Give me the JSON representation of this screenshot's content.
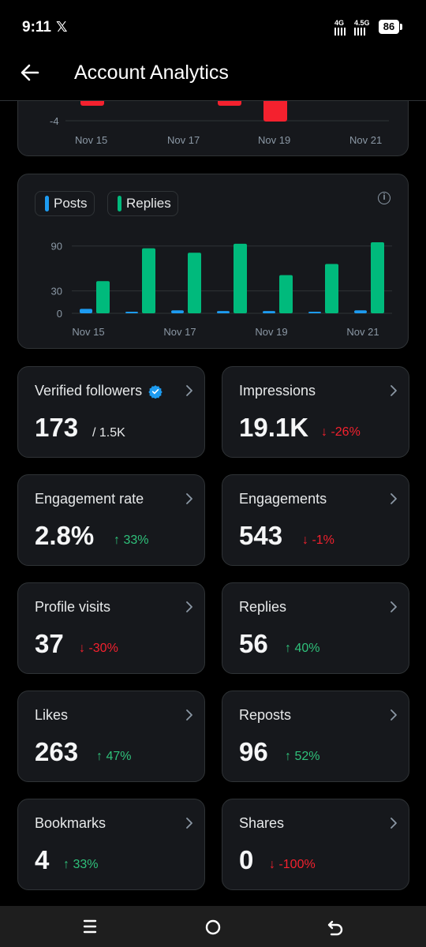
{
  "status": {
    "time": "9:11",
    "x_logo": "𝕏",
    "net1": "4G",
    "net2": "4.5G",
    "battery": "86"
  },
  "header": {
    "title": "Account Analytics",
    "back_icon": "arrow-left-icon"
  },
  "chart_top": {
    "y_tick": "-4",
    "x_ticks": [
      "Nov 15",
      "Nov 17",
      "Nov 19",
      "Nov 21"
    ]
  },
  "chart_data": {
    "type": "bar",
    "categories": [
      "Nov 15",
      "Nov 16",
      "Nov 17",
      "Nov 18",
      "Nov 19",
      "Nov 20",
      "Nov 21"
    ],
    "series": [
      {
        "name": "Posts",
        "color": "#1d9bf0",
        "values": [
          6,
          2,
          4,
          3,
          3,
          1,
          4
        ]
      },
      {
        "name": "Replies",
        "color": "#00ba7c",
        "values": [
          43,
          87,
          81,
          93,
          51,
          66,
          95
        ]
      }
    ],
    "y_ticks": [
      "90",
      "30",
      "0"
    ],
    "x_ticks": [
      "Nov 15",
      "Nov 17",
      "Nov 19",
      "Nov 21"
    ],
    "ylim": [
      0,
      100
    ],
    "grid": true,
    "legend": "top-left"
  },
  "metrics": [
    {
      "label": "Verified followers",
      "value": "173",
      "sub": "/ 1.5K",
      "delta": "",
      "verified": true
    },
    {
      "label": "Impressions",
      "value": "19.1K",
      "delta": "-26%",
      "dir": "down"
    },
    {
      "label": "Engagement rate",
      "value": "2.8%",
      "delta": "33%",
      "dir": "up"
    },
    {
      "label": "Engagements",
      "value": "543",
      "delta": "-1%",
      "dir": "down"
    },
    {
      "label": "Profile visits",
      "value": "37",
      "delta": "-30%",
      "dir": "down"
    },
    {
      "label": "Replies",
      "value": "56",
      "delta": "40%",
      "dir": "up"
    },
    {
      "label": "Likes",
      "value": "263",
      "delta": "47%",
      "dir": "up"
    },
    {
      "label": "Reposts",
      "value": "96",
      "delta": "52%",
      "dir": "up"
    },
    {
      "label": "Bookmarks",
      "value": "4",
      "delta": "33%",
      "dir": "up"
    },
    {
      "label": "Shares",
      "value": "0",
      "delta": "-100%",
      "dir": "down"
    }
  ],
  "colors": {
    "up": "#2fc07a",
    "down": "#f4212e",
    "negative_bar": "#f4212e"
  },
  "navbar": {
    "icons": [
      "menu-icon",
      "home-circle-icon",
      "back-return-icon"
    ]
  }
}
